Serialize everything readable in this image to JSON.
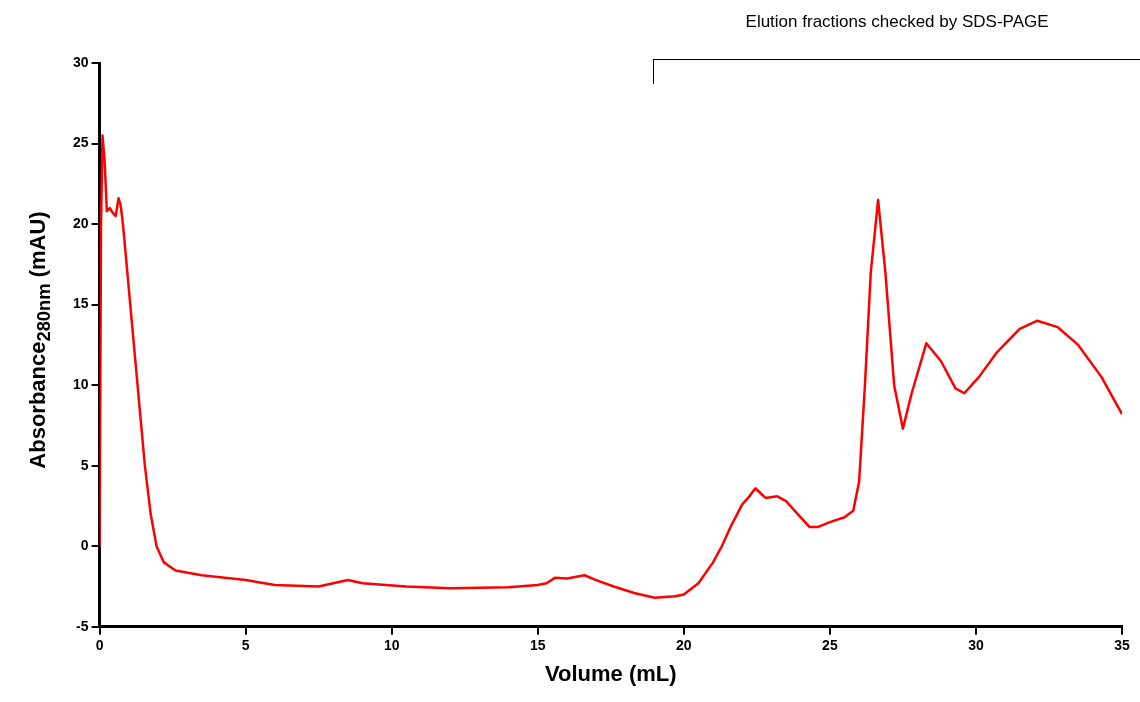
{
  "chart_data": {
    "type": "line",
    "xlabel": "Volume (mL)",
    "ylabel": "Absorbance$_{280nm}$ (mAU)",
    "annotations": [
      "Elution fractions checked by  SDS-PAGE"
    ],
    "xlim": [
      0,
      35
    ],
    "ylim": [
      -5,
      30
    ],
    "xticks": [
      0,
      5,
      10,
      15,
      20,
      25,
      30,
      35
    ],
    "yticks": [
      -5,
      0,
      5,
      10,
      15,
      20,
      25,
      30
    ],
    "grid": false,
    "legend": false,
    "series": [
      {
        "color": "#ff0000",
        "x": [
          0,
          0.05,
          0.1,
          0.17,
          0.25,
          0.35,
          0.45,
          0.55,
          0.65,
          0.72,
          0.8,
          1.05,
          1.3,
          1.55,
          1.75,
          1.95,
          2.2,
          2.6,
          3.5,
          5,
          6,
          7.5,
          8,
          8.5,
          9,
          10.5,
          12,
          14,
          15,
          15.3,
          15.6,
          16,
          16.6,
          17,
          17.6,
          18.3,
          19,
          19.7,
          20,
          20.5,
          21,
          21.3,
          21.6,
          22,
          22.2,
          22.45,
          22.8,
          23.2,
          23.5,
          23.9,
          24.3,
          24.6,
          25,
          25.5,
          25.8,
          26,
          26.2,
          26.4,
          26.65,
          26.9,
          27.2,
          27.5,
          27.8,
          28.3,
          28.8,
          29.3,
          29.6,
          30.1,
          30.7,
          31.5,
          32.1,
          32.8,
          33.5,
          34.3,
          35
        ],
        "values": [
          0,
          20,
          25.5,
          24,
          20.8,
          21,
          20.7,
          20.5,
          21.6,
          21.2,
          20,
          15,
          10,
          5,
          2,
          0,
          -1,
          -1.5,
          -1.8,
          -2.1,
          -2.4,
          -2.5,
          -2.3,
          -2.1,
          -2.3,
          -2.5,
          -2.6,
          -2.55,
          -2.4,
          -2.3,
          -1.95,
          -2,
          -1.8,
          -2.1,
          -2.5,
          -2.9,
          -3.2,
          -3.1,
          -3,
          -2.3,
          -1,
          0,
          1.2,
          2.6,
          3,
          3.6,
          3,
          3.1,
          2.8,
          2,
          1.2,
          1.2,
          1.5,
          1.8,
          2.2,
          4,
          10,
          17,
          21.5,
          17,
          10,
          7.3,
          9.5,
          12.6,
          11.5,
          9.8,
          9.5,
          10.5,
          12,
          13.5,
          14,
          13.6,
          12.5,
          10.5,
          8.2
        ]
      }
    ]
  }
}
